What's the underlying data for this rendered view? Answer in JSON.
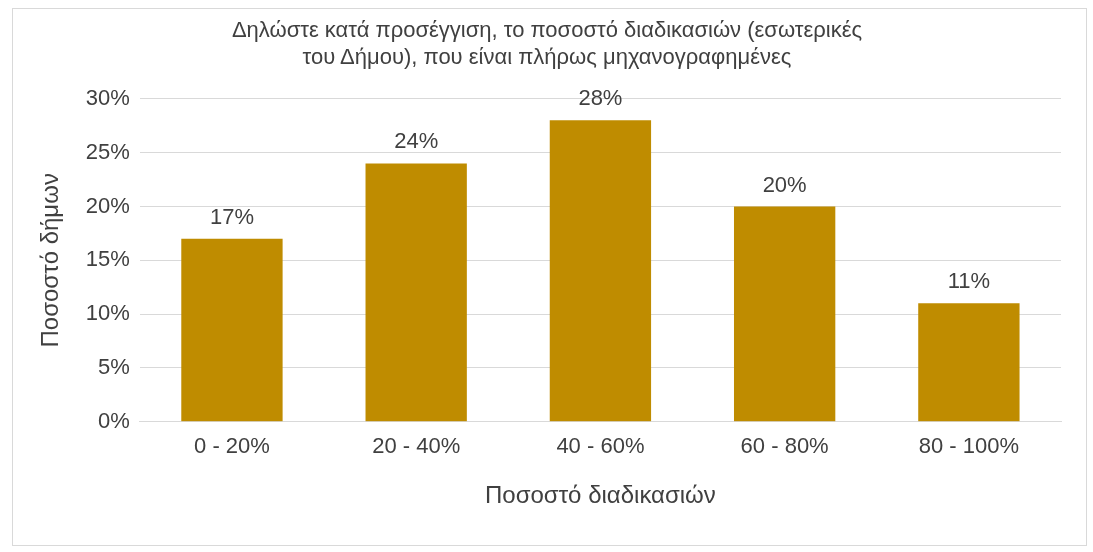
{
  "chart_data": {
    "type": "bar",
    "title": [
      "Δηλώστε κατά προσέγγιση, το ποσοστό διαδικασιών (εσωτερικές",
      "του Δήμου), που είναι πλήρως μηχανογραφημένες"
    ],
    "xlabel": "Ποσοστό διαδικασιών",
    "ylabel": "Ποσοστό δήμων",
    "categories": [
      "0 - 20%",
      "20 - 40%",
      "40 - 60%",
      "60 - 80%",
      "80 - 100%"
    ],
    "values": [
      17,
      24,
      28,
      20,
      11
    ],
    "value_labels": [
      "17%",
      "24%",
      "28%",
      "20%",
      "11%"
    ],
    "color": "#bf8c00",
    "ylim": [
      0,
      30
    ],
    "yticks": [
      {
        "value": 0,
        "label": "0%"
      },
      {
        "value": 5,
        "label": "5%"
      },
      {
        "value": 10,
        "label": "10%"
      },
      {
        "value": 15,
        "label": "15%"
      },
      {
        "value": 20,
        "label": "20%"
      },
      {
        "value": 25,
        "label": "25%"
      },
      {
        "value": 30,
        "label": "30%"
      }
    ],
    "grid": "y",
    "legend": false
  }
}
